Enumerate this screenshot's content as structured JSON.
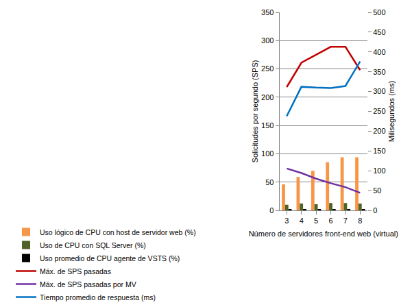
{
  "chart_data": {
    "type": "bar",
    "x_label": "Número de servidores front-end web (virtual)",
    "y_label": "Solicitudes por segundo (SPS)",
    "y2_label": "Milisegundos (ms)",
    "categories": [
      "3",
      "4",
      "5",
      "6",
      "7",
      "8"
    ],
    "ylim": [
      0,
      350
    ],
    "yticks": [
      0,
      50,
      100,
      150,
      200,
      250,
      300,
      350
    ],
    "y2lim": [
      0,
      500
    ],
    "y2ticks": [
      0,
      50,
      100,
      150,
      200,
      250,
      300,
      350,
      400,
      450,
      500
    ],
    "grid": true,
    "legend": "bottom",
    "series": [
      {
        "name": "Uso lógico de CPU con host de servidor web (%)",
        "type": "bar",
        "color": "#F79646",
        "values": [
          46,
          59,
          70,
          85,
          94,
          94
        ]
      },
      {
        "name": "Uso de CPU con SQL Server (%)",
        "type": "bar",
        "color": "#4F6228",
        "values": [
          10,
          12,
          11,
          13,
          13,
          12
        ]
      },
      {
        "name": "Uso promedio de CPU agente de VSTS (%)",
        "type": "bar",
        "color": "#000000",
        "values": [
          2,
          2,
          2,
          2,
          2,
          2
        ]
      },
      {
        "name": "Máx. de SPS pasadas",
        "type": "line",
        "color": "#C00000",
        "values": [
          218,
          261,
          275,
          289,
          289,
          248
        ]
      },
      {
        "name": "Máx. de SPS pasadas por MV",
        "type": "line",
        "color": "#7030A0",
        "values": [
          74,
          66,
          56,
          48,
          41,
          31
        ]
      },
      {
        "name": "Tiempo promedio de respuesta (ms)",
        "type": "line",
        "color": "#0070C0",
        "axis": "y2",
        "values": [
          238,
          312,
          310,
          309,
          314,
          376
        ]
      }
    ]
  }
}
